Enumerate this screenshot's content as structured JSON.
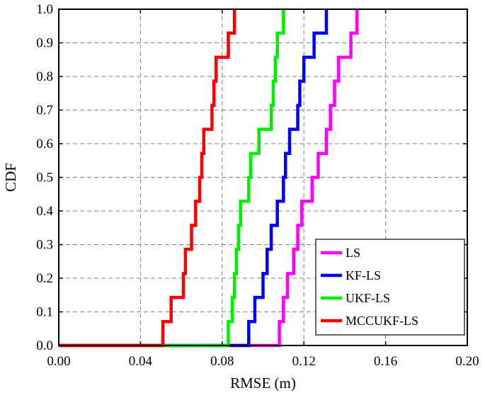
{
  "chart_data": {
    "type": "line",
    "step": true,
    "xlabel": "RMSE (m)",
    "ylabel": "CDF",
    "xlim": [
      0.0,
      0.2
    ],
    "ylim": [
      0.0,
      1.0
    ],
    "xticks": [
      "0.00",
      "0.04",
      "0.08",
      "0.12",
      "0.16",
      "0.20"
    ],
    "yticks": [
      "0.0",
      "0.1",
      "0.2",
      "0.3",
      "0.4",
      "0.5",
      "0.6",
      "0.7",
      "0.8",
      "0.9",
      "1.0"
    ],
    "grid": true,
    "legend_position": "bottom-right",
    "series": [
      {
        "name": "LS",
        "color": "#ff00ff",
        "x": [
          0.108,
          0.11,
          0.112,
          0.115,
          0.117,
          0.119,
          0.124,
          0.127,
          0.131,
          0.133,
          0.135,
          0.137,
          0.143,
          0.146
        ],
        "y": [
          0.071,
          0.143,
          0.214,
          0.286,
          0.357,
          0.429,
          0.5,
          0.571,
          0.643,
          0.714,
          0.786,
          0.857,
          0.929,
          1.0
        ]
      },
      {
        "name": "KF-LS",
        "color": "#0000ff",
        "x": [
          0.093,
          0.096,
          0.1,
          0.102,
          0.104,
          0.107,
          0.11,
          0.111,
          0.113,
          0.117,
          0.118,
          0.12,
          0.125,
          0.131
        ],
        "y": [
          0.071,
          0.143,
          0.214,
          0.286,
          0.357,
          0.429,
          0.5,
          0.571,
          0.643,
          0.714,
          0.786,
          0.857,
          0.929,
          1.0
        ]
      },
      {
        "name": "UKF-LS",
        "color": "#00ee00",
        "x": [
          0.083,
          0.085,
          0.086,
          0.087,
          0.088,
          0.089,
          0.093,
          0.094,
          0.098,
          0.104,
          0.105,
          0.106,
          0.107,
          0.11
        ],
        "y": [
          0.071,
          0.143,
          0.214,
          0.286,
          0.357,
          0.429,
          0.5,
          0.571,
          0.643,
          0.714,
          0.786,
          0.857,
          0.929,
          1.0
        ]
      },
      {
        "name": "MCCUKF-LS",
        "color": "#ff0000",
        "x": [
          0.051,
          0.055,
          0.061,
          0.062,
          0.065,
          0.067,
          0.069,
          0.07,
          0.071,
          0.075,
          0.076,
          0.077,
          0.083,
          0.086
        ],
        "y": [
          0.071,
          0.143,
          0.214,
          0.286,
          0.357,
          0.429,
          0.5,
          0.571,
          0.643,
          0.714,
          0.786,
          0.857,
          0.929,
          1.0
        ]
      }
    ]
  }
}
